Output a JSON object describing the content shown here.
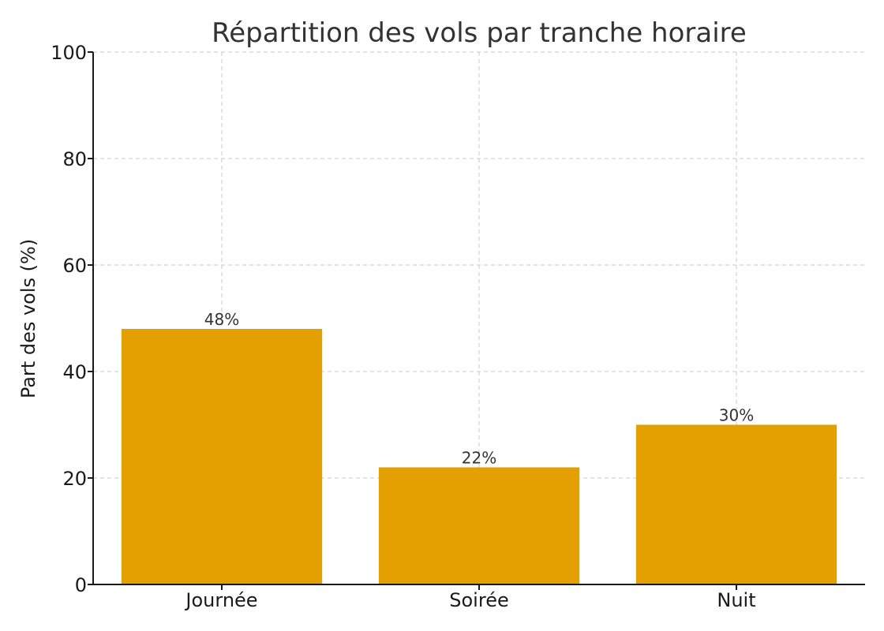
{
  "colors": {
    "bar": "#E3A000",
    "grid": "#c8c8c8",
    "axis": "#1a1a1a",
    "text": "#333333"
  },
  "chart_data": {
    "type": "bar",
    "title": "Répartition des vols par tranche horaire",
    "xlabel": "",
    "ylabel": "Part des vols (%)",
    "categories": [
      "Journée",
      "Soirée",
      "Nuit"
    ],
    "values": [
      48,
      22,
      30
    ],
    "data_labels": [
      "48%",
      "22%",
      "30%"
    ],
    "ylim": [
      0,
      100
    ],
    "yticks": [
      0,
      20,
      40,
      60,
      80,
      100
    ],
    "grid": true,
    "legend": "none"
  }
}
